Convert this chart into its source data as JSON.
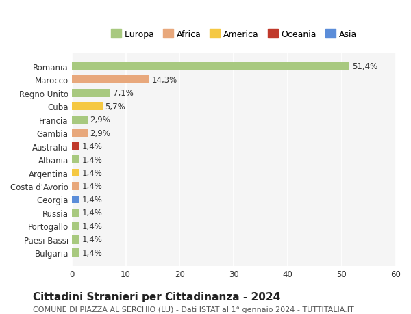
{
  "categories": [
    "Romania",
    "Marocco",
    "Regno Unito",
    "Cuba",
    "Francia",
    "Gambia",
    "Australia",
    "Albania",
    "Argentina",
    "Costa d'Avorio",
    "Georgia",
    "Russia",
    "Portogallo",
    "Paesi Bassi",
    "Bulgaria"
  ],
  "values": [
    51.4,
    14.3,
    7.1,
    5.7,
    2.9,
    2.9,
    1.4,
    1.4,
    1.4,
    1.4,
    1.4,
    1.4,
    1.4,
    1.4,
    1.4
  ],
  "labels": [
    "51,4%",
    "14,3%",
    "7,1%",
    "5,7%",
    "2,9%",
    "2,9%",
    "1,4%",
    "1,4%",
    "1,4%",
    "1,4%",
    "1,4%",
    "1,4%",
    "1,4%",
    "1,4%",
    "1,4%"
  ],
  "colors": [
    "#a8c97f",
    "#e8a87c",
    "#a8c97f",
    "#f5c842",
    "#a8c97f",
    "#e8a87c",
    "#c0392b",
    "#a8c97f",
    "#f5c842",
    "#e8a87c",
    "#5b8dd9",
    "#a8c97f",
    "#a8c97f",
    "#a8c97f",
    "#a8c97f"
  ],
  "legend": [
    {
      "label": "Europa",
      "color": "#a8c97f"
    },
    {
      "label": "Africa",
      "color": "#e8a87c"
    },
    {
      "label": "America",
      "color": "#f5c842"
    },
    {
      "label": "Oceania",
      "color": "#c0392b"
    },
    {
      "label": "Asia",
      "color": "#5b8dd9"
    }
  ],
  "xlim": [
    0,
    60
  ],
  "xticks": [
    0,
    10,
    20,
    30,
    40,
    50,
    60
  ],
  "title": "Cittadini Stranieri per Cittadinanza - 2024",
  "subtitle": "COMUNE DI PIAZZA AL SERCHIO (LU) - Dati ISTAT al 1° gennaio 2024 - TUTTITALIA.IT",
  "background_color": "#ffffff",
  "plot_bg_color": "#f5f5f5",
  "grid_color": "#ffffff",
  "bar_height": 0.6,
  "label_fontsize": 8.5,
  "tick_fontsize": 8.5,
  "title_fontsize": 11,
  "subtitle_fontsize": 8
}
